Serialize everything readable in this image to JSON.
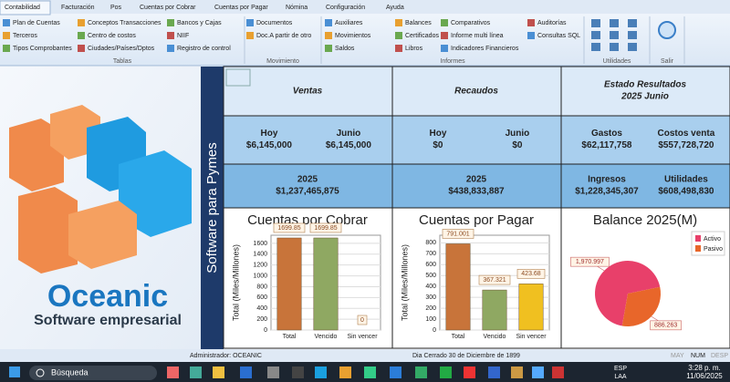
{
  "ribbon": {
    "tabs": [
      "Contabilidad",
      "Facturación",
      "Pos",
      "Cuentas por Cobrar",
      "Cuentas por Pagar",
      "Nómina",
      "Configuración",
      "Ayuda"
    ],
    "groups": [
      {
        "label": "Tablas",
        "columns": [
          [
            "Plan de Cuentas",
            "Terceros",
            "Tipos Comprobantes"
          ],
          [
            "Conceptos Transacciones",
            "Centro de costos",
            "Ciudades/Países/Dptos"
          ],
          [
            "Bancos y Cajas",
            "NIIF",
            "Registro de control"
          ]
        ]
      },
      {
        "label": "Movimiento",
        "columns": [
          [
            "Documentos",
            "Doc.A partir de otro"
          ]
        ]
      },
      {
        "label": "Informes",
        "columns": [
          [
            "Auxiliares",
            "Movimientos",
            "Saldos"
          ],
          [
            "Balances",
            "Certificados",
            "Libros"
          ],
          [
            "Comparativos",
            "Informe multi línea",
            "Indicadores Financieros"
          ],
          [
            "Auditorías",
            "Consultas SQL"
          ]
        ]
      },
      {
        "label": "Utilidades",
        "columns": []
      },
      {
        "label": "Salir",
        "columns": []
      }
    ]
  },
  "brand": {
    "name": "Oceanic",
    "tagline": "Software empresarial",
    "side": "Software para Pymes"
  },
  "dashboard": {
    "rows": [
      [
        [
          {
            "label": "Ventas"
          }
        ],
        [
          {
            "label": "Recaudos"
          }
        ],
        [
          {
            "label": "Estado Resultados",
            "value": "2025 Junio"
          }
        ]
      ],
      [
        [
          {
            "label": "Hoy",
            "value": "$6,145,000"
          },
          {
            "label": "Junio",
            "value": "$6,145,000"
          }
        ],
        [
          {
            "label": "Hoy",
            "value": "$0"
          },
          {
            "label": "Junio",
            "value": "$0"
          }
        ],
        [
          {
            "label": "Gastos",
            "value": "$62,117,758"
          },
          {
            "label": "Costos venta",
            "value": "$557,728,720"
          }
        ]
      ],
      [
        [
          {
            "label": "2025",
            "value": "$1,237,465,875"
          }
        ],
        [
          {
            "label": "2025",
            "value": "$438,833,887"
          }
        ],
        [
          {
            "label": "Ingresos",
            "value": "$1,228,345,307"
          },
          {
            "label": "Utilidades",
            "value": "$608,498,830"
          }
        ]
      ]
    ]
  },
  "chart_data": [
    {
      "type": "bar",
      "title": "Cuentas por Cobrar",
      "y_label": "Total (Miles/Millones)",
      "categories": [
        "Total",
        "Vencido",
        "Sin vencer"
      ],
      "values": [
        1699.85,
        1699.85,
        0
      ],
      "value_labels": [
        "1699.85",
        "1699.85",
        "0"
      ],
      "colors": [
        "#c8743a",
        "#8fa862",
        "#f0c020"
      ],
      "ylim": [
        0,
        1750
      ],
      "yticks": [
        0,
        200,
        400,
        600,
        800,
        1000,
        1200,
        1400,
        1600
      ],
      "grid": true
    },
    {
      "type": "bar",
      "title": "Cuentas por Pagar",
      "y_label": "Total (Miles/Millones)",
      "categories": [
        "Total",
        "Vencido",
        "Sin vencer"
      ],
      "values": [
        791.001,
        367.321,
        423.68
      ],
      "value_labels": [
        "791.001",
        "367.321",
        "423.68"
      ],
      "colors": [
        "#c8743a",
        "#8fa862",
        "#f0c020"
      ],
      "ylim": [
        0,
        870
      ],
      "yticks": [
        0,
        100,
        200,
        300,
        400,
        500,
        600,
        700,
        800
      ],
      "grid": true
    },
    {
      "type": "pie",
      "title": "Balance 2025(M)",
      "categories": [
        "Activo",
        "Pasivo"
      ],
      "values": [
        1970.997,
        886.263
      ],
      "value_labels": [
        "1,970.997",
        "886.263"
      ],
      "colors": [
        "#e8406a",
        "#e8662a"
      ],
      "legend": "top-right"
    }
  ],
  "status": {
    "user": "Administrador: OCEANIC",
    "day": "Dia Cerrado 30 de Diciembre de 1899",
    "keys": [
      "MAY",
      "NUM",
      "DESP"
    ]
  },
  "taskbar": {
    "search": "Búsqueda",
    "lang": "ESP",
    "layout": "LAA",
    "time": "3:28 p. m.",
    "date": "11/06/2025"
  }
}
